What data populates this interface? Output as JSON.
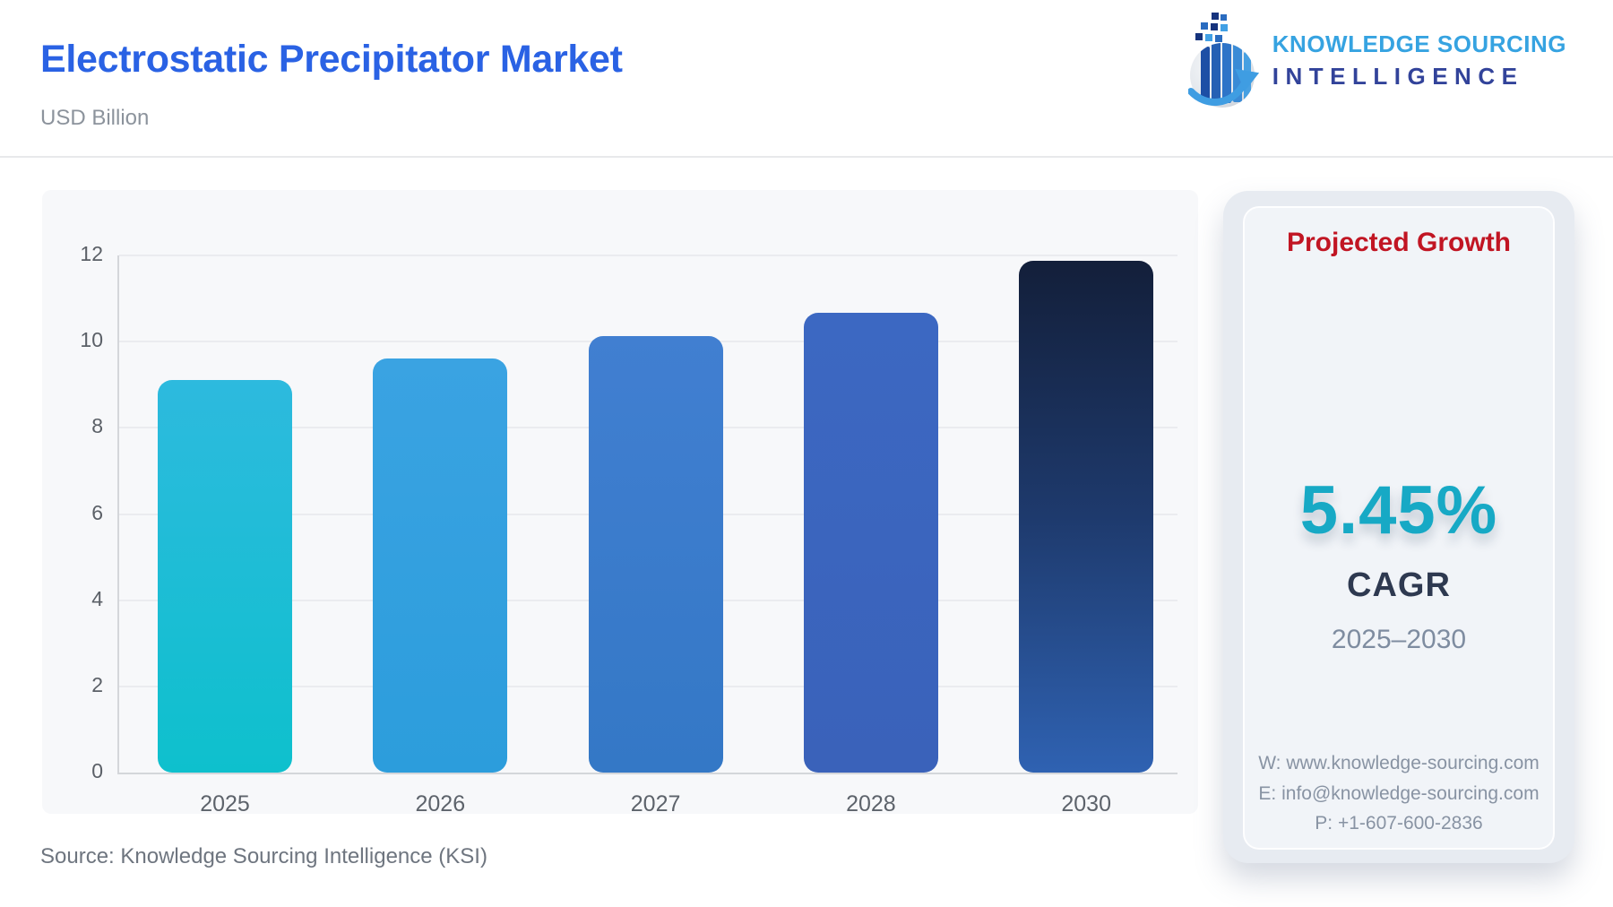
{
  "header": {
    "title": "Electrostatic Precipitator Market",
    "subtitle": "USD Billion",
    "logo": {
      "line1": "KNOWLEDGE SOURCING",
      "line2": "INTELLIGENCE"
    }
  },
  "chart_data": {
    "type": "bar",
    "title": "Electrostatic Precipitator Market",
    "ylabel": "USD Billion",
    "xlabel": "",
    "categories": [
      "2025",
      "2026",
      "2027",
      "2028",
      "2030"
    ],
    "values": [
      9.1,
      9.6,
      10.12,
      10.67,
      11.87
    ],
    "ylim": [
      0,
      12
    ],
    "y_ticks": [
      0,
      2,
      4,
      6,
      8,
      10,
      12
    ],
    "grid": true,
    "legend": false,
    "bar_gradients": [
      [
        "#2dbade",
        "#0ec0cd"
      ],
      [
        "#3aa3e2",
        "#2c9ddc"
      ],
      [
        "#417fd1",
        "#3478c6"
      ],
      [
        "#3c68c2",
        "#3a62ba"
      ],
      [
        "#131f3a",
        "#1e3a6d",
        "#2f62b2"
      ]
    ]
  },
  "panel": {
    "heading": "Projected Growth",
    "heading_color": "#c11523",
    "value": "5.45%",
    "value_color": "#17a9c5",
    "value_label": "CAGR",
    "period": "2025–2030",
    "contact": {
      "website": "W: www.knowledge-sourcing.com",
      "email": "E: info@knowledge-sourcing.com",
      "phone": "P: +1-607-600-2836"
    }
  },
  "footer": {
    "source": "Source: Knowledge Sourcing Intelligence (KSI)"
  },
  "colors": {
    "title_accent": "#2a62e4",
    "logo_light_blue": "#36a3e1",
    "logo_dark_blue": "#32439a",
    "card_bg": "#f7f8fa",
    "panel_bg": "#e7ebf1"
  }
}
